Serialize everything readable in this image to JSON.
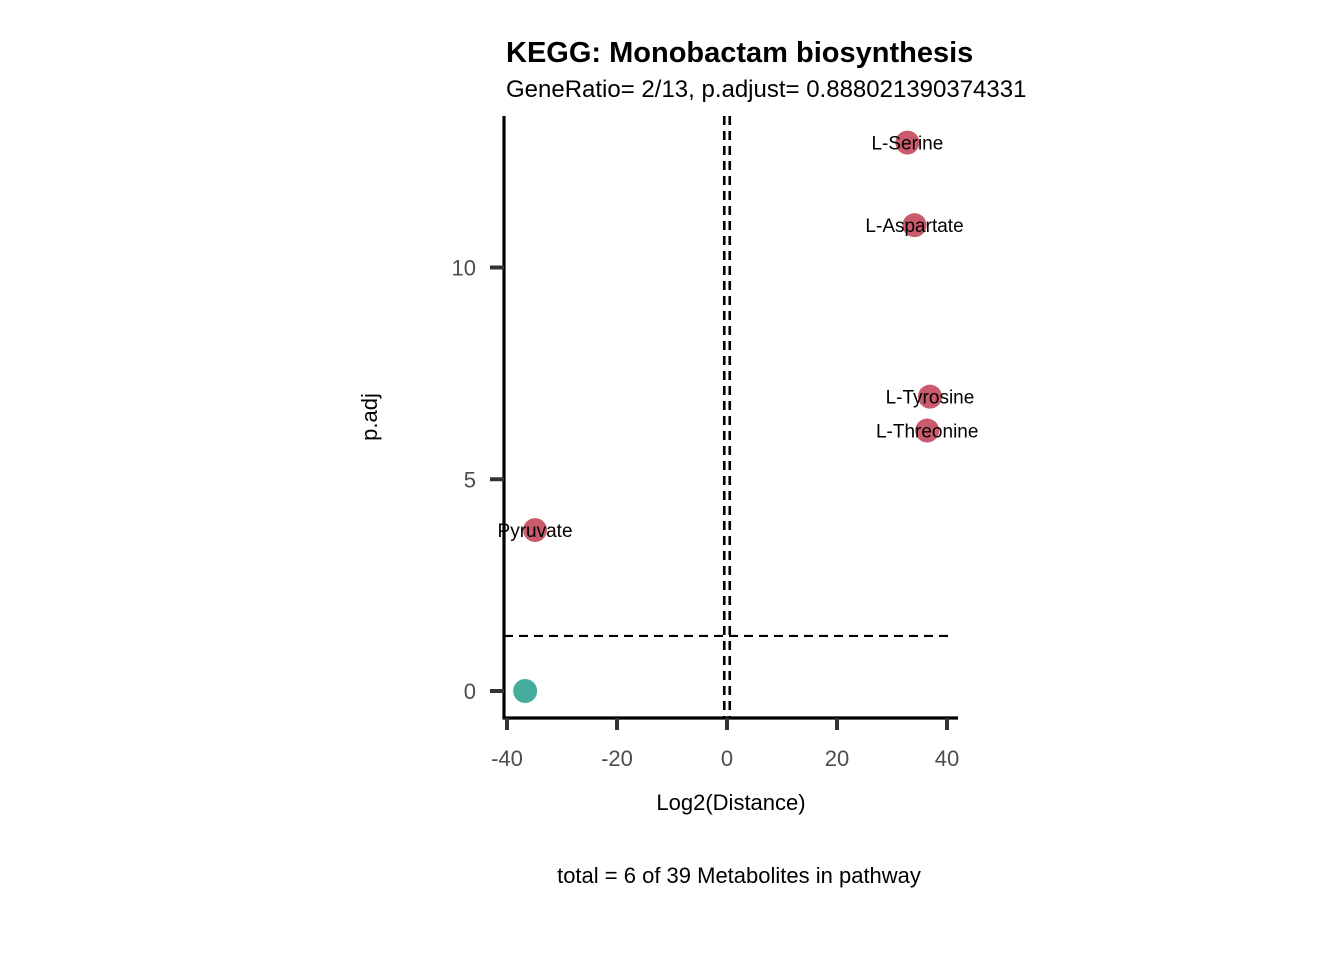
{
  "chart_data": {
    "type": "scatter",
    "title": "KEGG: Monobactam biosynthesis",
    "subtitle": "GeneRatio= 2/13, p.adjust= 0.888021390374331",
    "xlabel": "Log2(Distance)",
    "ylabel": "p.adj",
    "caption": "total = 6 of 39 Metabolites in pathway",
    "xlim": [
      -40,
      41
    ],
    "ylim": [
      -0.6,
      13.6
    ],
    "x_ticks": [
      -40,
      -20,
      0,
      20,
      40
    ],
    "x_tick_labels": [
      "-40",
      "-20",
      "0",
      "20",
      "40"
    ],
    "y_ticks": [
      0,
      5,
      10
    ],
    "y_tick_labels": [
      "0",
      "5",
      "10"
    ],
    "grid": false,
    "legend": "none",
    "colors": {
      "significant": "#c95b6c",
      "not_significant": "#45ad9d"
    },
    "reference_lines": {
      "vertical_x": [
        -0.5,
        0.5
      ],
      "horizontal_y": 1.3
    },
    "points": [
      {
        "label": "L-Serine",
        "x": 32.8,
        "y": 12.95,
        "group": "significant"
      },
      {
        "label": "L-Aspartate",
        "x": 34.1,
        "y": 11.0,
        "group": "significant"
      },
      {
        "label": "L-Tyrosine",
        "x": 36.9,
        "y": 6.95,
        "group": "significant"
      },
      {
        "label": "L-Threonine",
        "x": 36.4,
        "y": 6.15,
        "group": "significant"
      },
      {
        "label": "Pyruvate",
        "x": -34.9,
        "y": 3.8,
        "group": "significant"
      },
      {
        "label": "",
        "x": -36.7,
        "y": 0.0,
        "group": "not_significant"
      }
    ]
  }
}
